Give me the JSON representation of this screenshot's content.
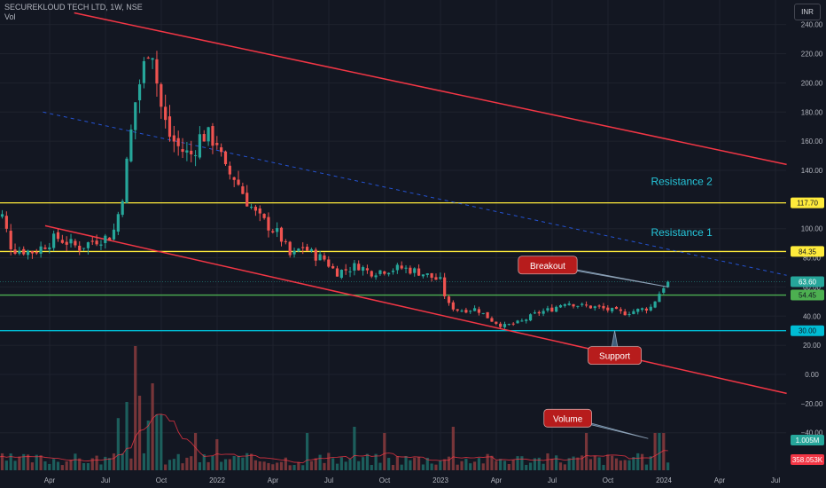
{
  "header": {
    "symbol": "SECUREKLOUD TECH LTD, 1W, NSE",
    "volume_label": "Vol",
    "currency": "INR"
  },
  "colors": {
    "up": "#26a69a",
    "down": "#ef5350",
    "background": "#131722",
    "channel": "#f23645",
    "resistance": "#ffeb3b",
    "support": "#00bcd4",
    "breakout_level": "#4caf50",
    "annotation": "#b71c1c"
  },
  "chart_data": {
    "type": "candlestick",
    "y_axis": {
      "ticks": [
        "240.00",
        "220.00",
        "200.00",
        "180.00",
        "160.00",
        "140.00",
        "100.00",
        "80.00",
        "60.00",
        "40.00",
        "20.00",
        "0.00",
        "−20.00",
        "−40.00"
      ],
      "tick_values": [
        240,
        220,
        200,
        180,
        160,
        140,
        100,
        80,
        60,
        40,
        20,
        0,
        -20,
        -40
      ]
    },
    "x_axis": {
      "ticks": [
        "Apr",
        "Jul",
        "Oct",
        "2022",
        "Apr",
        "Jul",
        "Oct",
        "2023",
        "Apr",
        "Jul",
        "Oct",
        "2024",
        "Apr",
        "Jul"
      ],
      "tick_t": [
        2021.25,
        2021.5,
        2021.75,
        2022.0,
        2022.25,
        2022.5,
        2022.75,
        2023.0,
        2023.25,
        2023.5,
        2023.75,
        2024.0,
        2024.25,
        2024.5
      ]
    },
    "price_keypoints": [
      [
        2020.98,
        88
      ],
      [
        2021.02,
        104
      ],
      [
        2021.05,
        112
      ],
      [
        2021.1,
        86
      ],
      [
        2021.2,
        84
      ],
      [
        2021.3,
        94
      ],
      [
        2021.4,
        87
      ],
      [
        2021.47,
        92
      ],
      [
        2021.55,
        95
      ],
      [
        2021.59,
        118
      ],
      [
        2021.62,
        150
      ],
      [
        2021.65,
        185
      ],
      [
        2021.68,
        205
      ],
      [
        2021.7,
        215
      ],
      [
        2021.72,
        235
      ],
      [
        2021.76,
        188
      ],
      [
        2021.8,
        165
      ],
      [
        2021.85,
        155
      ],
      [
        2021.9,
        150
      ],
      [
        2021.95,
        165
      ],
      [
        2022.02,
        160
      ],
      [
        2022.05,
        140
      ],
      [
        2022.1,
        135
      ],
      [
        2022.15,
        120
      ],
      [
        2022.2,
        108
      ],
      [
        2022.25,
        102
      ],
      [
        2022.3,
        95
      ],
      [
        2022.35,
        80
      ],
      [
        2022.4,
        88
      ],
      [
        2022.45,
        82
      ],
      [
        2022.5,
        79
      ],
      [
        2022.55,
        70
      ],
      [
        2022.6,
        72
      ],
      [
        2022.65,
        75
      ],
      [
        2022.7,
        70
      ],
      [
        2022.78,
        72
      ],
      [
        2022.85,
        73
      ],
      [
        2022.93,
        70
      ],
      [
        2023.02,
        64
      ],
      [
        2023.05,
        48
      ],
      [
        2023.1,
        44
      ],
      [
        2023.18,
        45
      ],
      [
        2023.25,
        37
      ],
      [
        2023.3,
        33
      ],
      [
        2023.38,
        36
      ],
      [
        2023.45,
        42
      ],
      [
        2023.52,
        45
      ],
      [
        2023.58,
        50
      ],
      [
        2023.65,
        47
      ],
      [
        2023.72,
        46
      ],
      [
        2023.78,
        44
      ],
      [
        2023.84,
        42
      ],
      [
        2023.9,
        44
      ],
      [
        2023.96,
        46
      ],
      [
        2024.0,
        56
      ],
      [
        2024.03,
        63.6
      ]
    ],
    "volume": {
      "axis_min": -40,
      "axis_max": 40,
      "series": [
        {
          "name": "last_bar",
          "value": "1.005M"
        },
        {
          "name": "moving_average",
          "value": "358.053K"
        }
      ],
      "spikes": [
        [
          2021.55,
          0.42
        ],
        [
          2021.6,
          0.55
        ],
        [
          2021.63,
          1.0
        ],
        [
          2021.66,
          0.6
        ],
        [
          2021.69,
          0.4
        ],
        [
          2021.72,
          0.7
        ],
        [
          2021.74,
          0.45
        ],
        [
          2021.9,
          0.3
        ],
        [
          2022.0,
          0.25
        ],
        [
          2022.4,
          0.3
        ],
        [
          2022.62,
          0.35
        ],
        [
          2022.75,
          0.3
        ],
        [
          2023.05,
          0.35
        ],
        [
          2023.65,
          0.3
        ],
        [
          2023.97,
          0.3
        ],
        [
          2024.0,
          0.3
        ],
        [
          2024.03,
          0.32
        ]
      ]
    },
    "levels": [
      {
        "name": "Resistance 2",
        "value": 117.7,
        "label": "117.70",
        "color": "#ffeb3b"
      },
      {
        "name": "Resistance 1",
        "value": 84.35,
        "label": "84.35",
        "color": "#ffeb3b"
      },
      {
        "name": "Breakout level",
        "value": 54.45,
        "label": "54.45",
        "color": "#4caf50"
      },
      {
        "name": "Support",
        "value": 30.0,
        "label": "30.00",
        "color": "#00bcd4"
      }
    ],
    "last_price": {
      "value": 63.6,
      "label": "63.60"
    },
    "trendlines": [
      {
        "kind": "channel-upper",
        "from": [
          2021.36,
          248
        ],
        "to": [
          2024.55,
          144
        ],
        "style": "solid"
      },
      {
        "kind": "channel-lower",
        "from": [
          2021.23,
          102
        ],
        "to": [
          2024.55,
          -13
        ],
        "style": "solid"
      },
      {
        "kind": "mid-dashed",
        "from": [
          2021.22,
          180
        ],
        "to": [
          2024.55,
          68
        ],
        "style": "dashed"
      }
    ],
    "annotations": [
      {
        "text": "Resistance 2",
        "style": "plain",
        "t": 2024.08,
        "v": 130
      },
      {
        "text": "Resistance 1",
        "style": "plain",
        "t": 2024.08,
        "v": 95
      },
      {
        "text": "Breakout",
        "style": "callout",
        "t": 2023.48,
        "v": 75,
        "pointer": [
          2024.02,
          60
        ]
      },
      {
        "text": "Support",
        "style": "callout",
        "t": 2023.78,
        "v": 13,
        "pointer": [
          2023.78,
          30
        ]
      },
      {
        "text": "Volume",
        "style": "callout",
        "t": 2023.57,
        "v": -30,
        "pointer": [
          2023.93,
          -44
        ]
      }
    ]
  }
}
